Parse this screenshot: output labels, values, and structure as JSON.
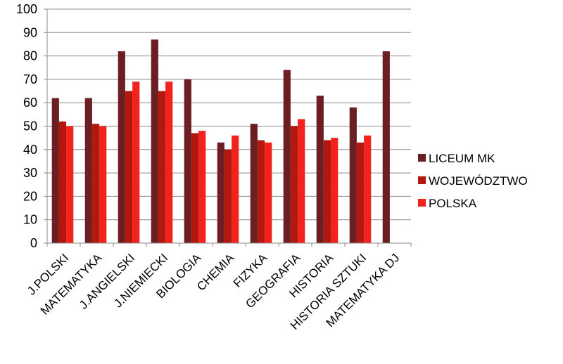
{
  "chart_data": {
    "type": "bar",
    "categories": [
      "J.POLSKI",
      "MATEMATYKA",
      "J.ANGIELSKI",
      "J.NIEMIECKI",
      "BIOLOGIA",
      "CHEMIA",
      "FIZYKA",
      "GEOGRAFIA",
      "HISTORIA",
      "HISTORIA SZTUKI",
      "MATEMATYKA DJ"
    ],
    "series": [
      {
        "name": "LICEUM MK",
        "color": "#6B1F23",
        "values": [
          62,
          62,
          82,
          87,
          70,
          43,
          51,
          74,
          63,
          58,
          82
        ]
      },
      {
        "name": "WOJEWÓDZTWO",
        "color": "#B2180E",
        "values": [
          52,
          51,
          65,
          65,
          47,
          40,
          44,
          50,
          44,
          43,
          null
        ]
      },
      {
        "name": "POLSKA",
        "color": "#F2221C",
        "values": [
          50,
          50,
          69,
          69,
          48,
          46,
          43,
          53,
          45,
          46,
          null
        ]
      }
    ],
    "ylim": [
      0,
      100
    ],
    "yticks": [
      0,
      10,
      20,
      30,
      40,
      50,
      60,
      70,
      80,
      90,
      100
    ],
    "grid": true,
    "legend_position": "right",
    "title": "",
    "xlabel": "",
    "ylabel": ""
  }
}
